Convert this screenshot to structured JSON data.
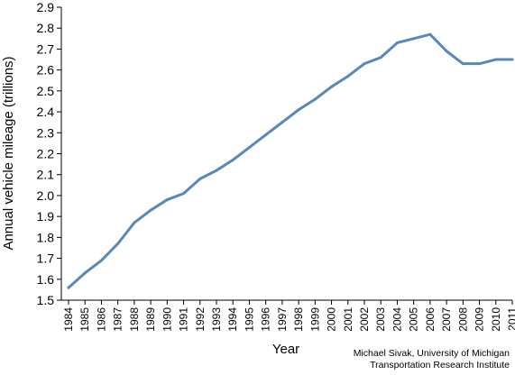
{
  "chart_data": {
    "type": "line",
    "title": "",
    "xlabel": "Year",
    "ylabel": "Annual vehicle mileage (trillions)",
    "ylim": [
      1.5,
      2.9
    ],
    "yticks": [
      "1.5",
      "1.6",
      "1.7",
      "1.8",
      "1.9",
      "2.0",
      "2.1",
      "2.2",
      "2.3",
      "2.4",
      "2.5",
      "2.6",
      "2.7",
      "2.8",
      "2.9"
    ],
    "grid": false,
    "legend": "none",
    "categories": [
      "1984",
      "1985",
      "1986",
      "1987",
      "1988",
      "1989",
      "1990",
      "1991",
      "1992",
      "1993",
      "1994",
      "1995",
      "1996",
      "1997",
      "1998",
      "1999",
      "2000",
      "2001",
      "2002",
      "2003",
      "2004",
      "2005",
      "2006",
      "2007",
      "2008",
      "2009",
      "2010",
      "2011"
    ],
    "series": [
      {
        "values": [
          1.56,
          1.63,
          1.69,
          1.77,
          1.87,
          1.93,
          1.98,
          2.01,
          2.08,
          2.12,
          2.17,
          2.23,
          2.29,
          2.35,
          2.41,
          2.46,
          2.52,
          2.57,
          2.63,
          2.66,
          2.73,
          2.75,
          2.77,
          2.69,
          2.63,
          2.63,
          2.65,
          2.65
        ],
        "color": "#5b87b3"
      }
    ]
  },
  "credit": {
    "line1": "Michael Sivak, University of Michigan",
    "line2": "Transportation Research Institute"
  }
}
